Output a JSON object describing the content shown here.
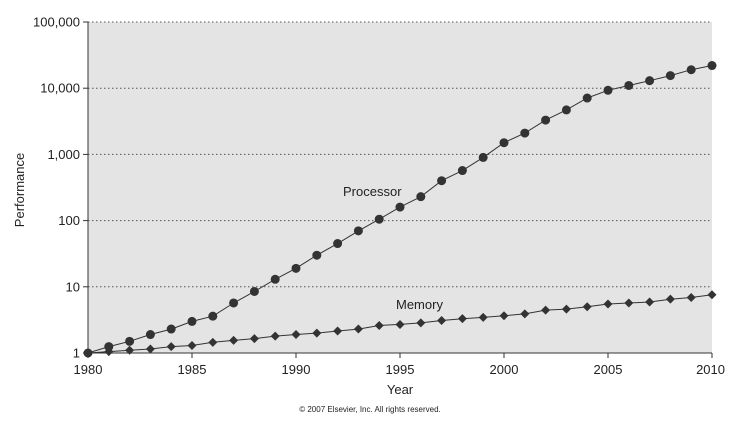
{
  "chart_data": {
    "type": "line",
    "title": "",
    "xlabel": "Year",
    "ylabel": "Performance",
    "xlim": [
      1980,
      2010
    ],
    "ylim": [
      1,
      100000
    ],
    "yscale": "log",
    "grid": "horizontal dotted",
    "background": "#e4e4e4",
    "x_ticks": [
      {
        "value": 1980,
        "label": "1980"
      },
      {
        "value": 1985,
        "label": "1985"
      },
      {
        "value": 1990,
        "label": "1990"
      },
      {
        "value": 1995,
        "label": "1995"
      },
      {
        "value": 2000,
        "label": "2000"
      },
      {
        "value": 2005,
        "label": "2005"
      },
      {
        "value": 2010,
        "label": "2010"
      }
    ],
    "y_ticks": [
      {
        "value": 1,
        "label": "1"
      },
      {
        "value": 10,
        "label": "10"
      },
      {
        "value": 100,
        "label": "100"
      },
      {
        "value": 1000,
        "label": "1,000"
      },
      {
        "value": 10000,
        "label": "10,000"
      },
      {
        "value": 100000,
        "label": "100,000"
      }
    ],
    "series": [
      {
        "name": "Processor",
        "marker": "circle",
        "color": "#333333",
        "x": [
          1980,
          1981,
          1982,
          1983,
          1984,
          1985,
          1986,
          1987,
          1988,
          1989,
          1990,
          1991,
          1992,
          1993,
          1994,
          1995,
          1996,
          1997,
          1998,
          1999,
          2000,
          2001,
          2002,
          2003,
          2004,
          2005,
          2006,
          2007,
          2008,
          2009,
          2010
        ],
        "values": [
          1,
          1.25,
          1.5,
          1.9,
          2.3,
          3.0,
          3.6,
          5.7,
          8.5,
          13,
          19,
          30,
          45,
          70,
          105,
          160,
          230,
          400,
          570,
          900,
          1500,
          2100,
          3300,
          4700,
          7100,
          9300,
          11000,
          13000,
          15500,
          19000,
          22000
        ]
      },
      {
        "name": "Memory",
        "marker": "diamond",
        "color": "#333333",
        "x": [
          1980,
          1981,
          1982,
          1983,
          1984,
          1985,
          1986,
          1987,
          1988,
          1989,
          1990,
          1991,
          1992,
          1993,
          1994,
          1995,
          1996,
          1997,
          1998,
          1999,
          2000,
          2001,
          2002,
          2003,
          2004,
          2005,
          2006,
          2007,
          2008,
          2009,
          2010
        ],
        "values": [
          1,
          1.05,
          1.1,
          1.15,
          1.25,
          1.3,
          1.45,
          1.55,
          1.65,
          1.8,
          1.9,
          2.0,
          2.15,
          2.3,
          2.6,
          2.7,
          2.85,
          3.1,
          3.3,
          3.45,
          3.65,
          3.9,
          4.45,
          4.6,
          5.0,
          5.5,
          5.7,
          5.9,
          6.5,
          6.9,
          7.6
        ]
      }
    ],
    "annotations": [
      "© 2007 Elsevier, Inc. All rights reserved."
    ]
  }
}
